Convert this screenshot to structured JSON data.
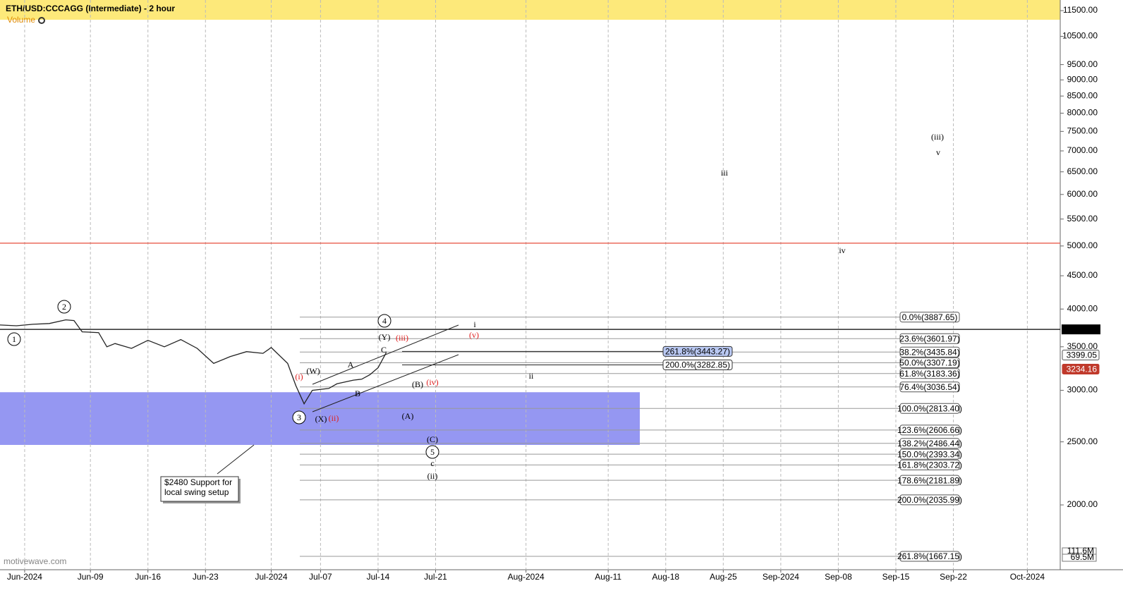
{
  "chart_data": {
    "type": "line",
    "title": "ETH/USD:CCCAGG (Intermediate) - 2 hour",
    "indicator_label": "Volume",
    "watermark": "motivewave.com",
    "log_scale": true,
    "grid": "x",
    "x": [
      "2024-05-29",
      "2024-05-31",
      "2024-06-02",
      "2024-06-04",
      "2024-06-06",
      "2024-06-07",
      "2024-06-08",
      "2024-06-10",
      "2024-06-11",
      "2024-06-12",
      "2024-06-14",
      "2024-06-16",
      "2024-06-18",
      "2024-06-20",
      "2024-06-22",
      "2024-06-24",
      "2024-06-26",
      "2024-06-28",
      "2024-06-30",
      "2024-07-01",
      "2024-07-03",
      "2024-07-04",
      "2024-07-05",
      "2024-07-06",
      "2024-07-08",
      "2024-07-09",
      "2024-07-11",
      "2024-07-12",
      "2024-07-13",
      "2024-07-14",
      "2024-07-15"
    ],
    "series": [
      {
        "color": "#222222",
        "values": [
          3780,
          3770,
          3790,
          3800,
          3850,
          3840,
          3690,
          3680,
          3500,
          3540,
          3480,
          3580,
          3500,
          3590,
          3480,
          3300,
          3380,
          3440,
          3420,
          3490,
          3300,
          3050,
          2860,
          3000,
          3020,
          3070,
          3110,
          3120,
          3170,
          3250,
          3430
        ]
      }
    ],
    "xlim": [
      "2024-05-29",
      "2024-10-05"
    ],
    "xticks": [
      {
        "value": "2024-06-01",
        "label": "Jun-2024"
      },
      {
        "value": "2024-06-09",
        "label": "Jun-09"
      },
      {
        "value": "2024-06-16",
        "label": "Jun-16"
      },
      {
        "value": "2024-06-23",
        "label": "Jun-23"
      },
      {
        "value": "2024-07-01",
        "label": "Jul-2024"
      },
      {
        "value": "2024-07-07",
        "label": "Jul-07"
      },
      {
        "value": "2024-07-14",
        "label": "Jul-14"
      },
      {
        "value": "2024-07-21",
        "label": "Jul-21"
      },
      {
        "value": "2024-08-01",
        "label": "Aug-2024"
      },
      {
        "value": "2024-08-11",
        "label": "Aug-11"
      },
      {
        "value": "2024-08-18",
        "label": "Aug-18"
      },
      {
        "value": "2024-08-25",
        "label": "Aug-25"
      },
      {
        "value": "2024-09-01",
        "label": "Sep-2024"
      },
      {
        "value": "2024-09-08",
        "label": "Sep-08"
      },
      {
        "value": "2024-09-15",
        "label": "Sep-15"
      },
      {
        "value": "2024-09-22",
        "label": "Sep-22"
      },
      {
        "value": "2024-10-01",
        "label": "Oct-2024"
      }
    ],
    "ylim": [
      1590,
      11940
    ],
    "yticks": [
      {
        "value": 2000,
        "label": "2000.00"
      },
      {
        "value": 2500,
        "label": "2500.00"
      },
      {
        "value": 3000,
        "label": "3000.00"
      },
      {
        "value": 3500,
        "label": "3500.00"
      },
      {
        "value": 4000,
        "label": "4000.00"
      },
      {
        "value": 4500,
        "label": "4500.00"
      },
      {
        "value": 5000,
        "label": "5000.00"
      },
      {
        "value": 5500,
        "label": "5500.00"
      },
      {
        "value": 6000,
        "label": "6000.00"
      },
      {
        "value": 6500,
        "label": "6500.00"
      },
      {
        "value": 7000,
        "label": "7000.00"
      },
      {
        "value": 7500,
        "label": "7500.00"
      },
      {
        "value": 8000,
        "label": "8000.00"
      },
      {
        "value": 8500,
        "label": "8500.00"
      },
      {
        "value": 9000,
        "label": "9000.00"
      },
      {
        "value": 9500,
        "label": "9500.00"
      },
      {
        "value": 10500,
        "label": "10500.00"
      },
      {
        "value": 11500,
        "label": "11500.00"
      }
    ],
    "last_prices": [
      {
        "value": 3399.05,
        "color": "#ffffff"
      },
      {
        "value": 3234.16,
        "color": "#c0392b"
      }
    ],
    "volume_labels": [
      "111.6M",
      "69.5M"
    ],
    "horizontal_lines": [
      {
        "value": 3722,
        "color": "#000000"
      },
      {
        "value": 5050,
        "color": "#e74c3c"
      }
    ],
    "support_zone": {
      "low": 2473,
      "high": 2980,
      "color": "#9597f2"
    },
    "fib_levels": [
      {
        "label": "0.0%(3887.65)",
        "value": 3887.65
      },
      {
        "label": "23.6%(3601.97)",
        "value": 3601.97
      },
      {
        "label": "38.2%(3435.84)",
        "value": 3435.84
      },
      {
        "label": "50.0%(3307.19)",
        "value": 3307.19
      },
      {
        "label": "61.8%(3183.36)",
        "value": 3183.36
      },
      {
        "label": "76.4%(3036.54)",
        "value": 3036.54
      },
      {
        "label": "100.0%(2813.40)",
        "value": 2813.4
      },
      {
        "label": "123.6%(2606.66)",
        "value": 2606.66
      },
      {
        "label": "138.2%(2486.44)",
        "value": 2486.44
      },
      {
        "label": "150.0%(2393.34)",
        "value": 2393.34
      },
      {
        "label": "161.8%(2303.72)",
        "value": 2303.72
      },
      {
        "label": "178.6%(2181.89)",
        "value": 2181.89
      },
      {
        "label": "200.0%(2035.99)",
        "value": 2035.99
      },
      {
        "label": "261.8%(1667.15)",
        "value": 1667.15
      }
    ],
    "extension_levels": [
      {
        "label": "261.8%(3443.27)",
        "value": 3443.27,
        "highlight": true
      },
      {
        "label": "200.0%(3282.85)",
        "value": 3282.85,
        "highlight": false
      }
    ],
    "callout": [
      "$2480 Support for",
      "local swing setup"
    ],
    "wave_labels": [
      {
        "text": "1",
        "circled": true,
        "color": "#000000"
      },
      {
        "text": "2",
        "circled": true,
        "color": "#000000"
      },
      {
        "text": "3",
        "circled": true,
        "color": "#000000"
      },
      {
        "text": "4",
        "circled": true,
        "color": "#000000"
      },
      {
        "text": "5",
        "circled": true,
        "color": "#000000"
      },
      {
        "text": "(W)",
        "color": "#000000"
      },
      {
        "text": "(X)",
        "color": "#000000"
      },
      {
        "text": "(Y)",
        "color": "#000000"
      },
      {
        "text": "(iii)",
        "color": "#e02020"
      },
      {
        "text": "(v)",
        "color": "#e02020"
      },
      {
        "text": "(i)",
        "color": "#e02020"
      },
      {
        "text": "(ii)",
        "color": "#e02020"
      },
      {
        "text": "(iv)",
        "color": "#e02020"
      },
      {
        "text": "i",
        "color": "#000000"
      },
      {
        "text": "ii",
        "color": "#000000"
      },
      {
        "text": "iii",
        "color": "#000000"
      },
      {
        "text": "iv",
        "color": "#000000"
      },
      {
        "text": "(iii)",
        "color": "#000000"
      },
      {
        "text": "v",
        "color": "#000000"
      },
      {
        "text": "A",
        "color": "#000000"
      },
      {
        "text": "B",
        "color": "#000000"
      },
      {
        "text": "C",
        "color": "#000000"
      },
      {
        "text": "(B)",
        "color": "#000000"
      },
      {
        "text": "(A)",
        "color": "#000000"
      },
      {
        "text": "(C)",
        "color": "#000000"
      },
      {
        "text": "c",
        "color": "#000000"
      },
      {
        "text": "(ii)",
        "color": "#000000"
      }
    ]
  }
}
